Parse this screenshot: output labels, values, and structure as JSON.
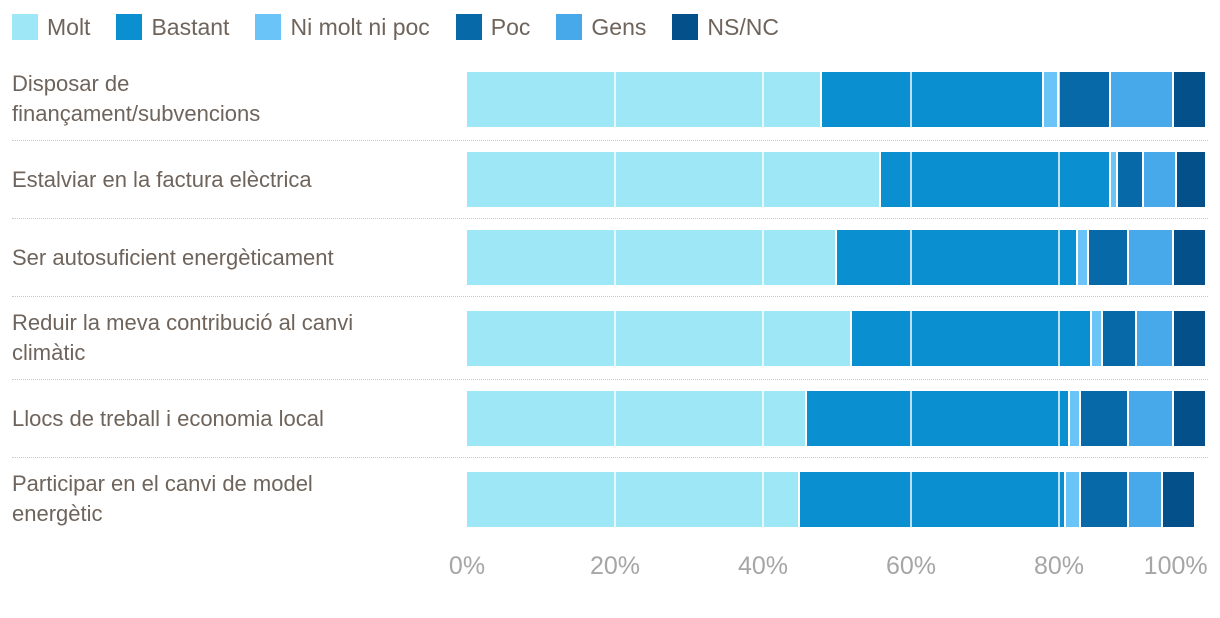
{
  "colors": {
    "label_text": "#6f645b",
    "axis_text": "#a6a6a6",
    "separator": "#c9c9c9",
    "gridline": "rgba(255,255,255,0.72)",
    "background": "#ffffff"
  },
  "legend": {
    "position": "top",
    "items": [
      "Molt",
      "Bastant",
      "Ni molt ni poc",
      "Poc",
      "Gens",
      "NS/NC"
    ]
  },
  "chart_data": {
    "type": "bar",
    "stacked": true,
    "orientation": "horizontal",
    "unit": "percent",
    "categories": [
      "Disposar de\nfinançament/subvencions",
      "Estalviar en la factura elèctrica",
      "Ser autosuficient energèticament",
      "Reduir la meva contribució al canvi\nclimàtic",
      "Llocs de treball i economia local",
      "Participar en el canvi de model\nenergètic"
    ],
    "series": [
      {
        "name": "Molt",
        "color": "#9de7f7",
        "values": [
          48,
          56,
          50,
          52,
          46,
          45
        ]
      },
      {
        "name": "Bastant",
        "color": "#0a8fd0",
        "values": [
          30,
          31,
          32.5,
          32.5,
          35.5,
          36
        ]
      },
      {
        "name": "Ni molt ni poc",
        "color": "#6ac4f8",
        "values": [
          2,
          1,
          1.5,
          1.5,
          1.5,
          2
        ]
      },
      {
        "name": "Poc",
        "color": "#0769a8",
        "values": [
          7,
          3.5,
          5.5,
          4.5,
          6.5,
          6.5
        ]
      },
      {
        "name": "Gens",
        "color": "#47a8ea",
        "values": [
          8.5,
          4.5,
          6,
          5,
          6,
          4.5
        ]
      },
      {
        "name": "NS/NC",
        "color": "#03508a",
        "values": [
          4.5,
          4,
          4.5,
          4.5,
          4.5,
          4.5
        ]
      }
    ],
    "x_axis": {
      "ticks": [
        "0%",
        "20%",
        "40%",
        "60%",
        "80%",
        "100%"
      ],
      "tick_values": [
        0,
        20,
        40,
        60,
        80,
        100
      ],
      "range": [
        0,
        100
      ],
      "gridlines_at": [
        20,
        40,
        60,
        80
      ],
      "grid": true
    },
    "legend_position": "top"
  }
}
